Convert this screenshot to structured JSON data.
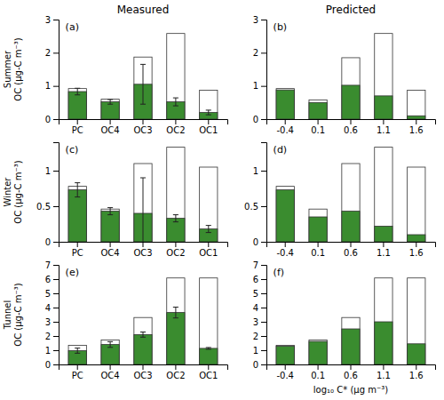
{
  "chart_data": [
    {
      "type": "bar",
      "title": "Measured",
      "ylabel": "Summer\nOC (μg-C m⁻³)",
      "annotations": [
        "(a)"
      ],
      "categories": [
        "PC",
        "OC4",
        "OC3",
        "OC2",
        "OC1"
      ],
      "series": [
        {
          "color": "#ffffff",
          "values": [
            0.92,
            0.6,
            1.87,
            2.58,
            0.87
          ]
        },
        {
          "color": "#3a8c2f",
          "values": [
            0.83,
            0.52,
            1.05,
            0.52,
            0.2
          ],
          "errors": [
            0.1,
            0.07,
            0.6,
            0.12,
            0.07
          ]
        }
      ],
      "stacked": false,
      "grid": false,
      "ylim": [
        0,
        3
      ],
      "yticks": [
        0,
        1,
        2,
        3
      ]
    },
    {
      "type": "bar",
      "title": "Predicted",
      "annotations": [
        "(b)"
      ],
      "categories": [
        "-0.4",
        "0.1",
        "0.6",
        "1.1",
        "1.6"
      ],
      "series": [
        {
          "color": "#ffffff",
          "values": [
            0.92,
            0.58,
            1.85,
            2.58,
            0.87
          ]
        },
        {
          "color": "#3a8c2f",
          "values": [
            0.88,
            0.5,
            1.02,
            0.7,
            0.1
          ]
        }
      ],
      "stacked": false,
      "grid": false,
      "ylim": [
        0,
        3
      ],
      "yticks": [
        0,
        1,
        2,
        3
      ]
    },
    {
      "type": "bar",
      "ylabel": "Winter\nOC (μg-C m⁻³)",
      "annotations": [
        "(c)"
      ],
      "categories": [
        "PC",
        "OC4",
        "OC3",
        "OC2",
        "OC1"
      ],
      "series": [
        {
          "color": "#ffffff",
          "values": [
            0.78,
            0.46,
            1.1,
            1.33,
            1.05
          ]
        },
        {
          "color": "#3a8c2f",
          "values": [
            0.73,
            0.43,
            0.4,
            0.33,
            0.18
          ],
          "errors": [
            0.1,
            0.05,
            0.5,
            0.05,
            0.05
          ]
        }
      ],
      "stacked": false,
      "grid": false,
      "ylim": [
        0,
        1.4
      ],
      "yticks": [
        0,
        0.5,
        1
      ]
    },
    {
      "type": "bar",
      "annotations": [
        "(d)"
      ],
      "categories": [
        "-0.4",
        "0.1",
        "0.6",
        "1.1",
        "1.6"
      ],
      "series": [
        {
          "color": "#ffffff",
          "values": [
            0.78,
            0.46,
            1.1,
            1.33,
            1.05
          ]
        },
        {
          "color": "#3a8c2f",
          "values": [
            0.73,
            0.35,
            0.43,
            0.22,
            0.1
          ]
        }
      ],
      "stacked": false,
      "grid": false,
      "ylim": [
        0,
        1.4
      ],
      "yticks": [
        0,
        0.5,
        1
      ]
    },
    {
      "type": "bar",
      "ylabel": "Tunnel\nOC (μg-C m⁻³)",
      "annotations": [
        "(e)"
      ],
      "categories": [
        "PC",
        "OC4",
        "OC3",
        "OC2",
        "OC1"
      ],
      "series": [
        {
          "color": "#ffffff",
          "values": [
            1.35,
            1.72,
            3.3,
            6.08,
            6.08
          ]
        },
        {
          "color": "#3a8c2f",
          "values": [
            0.97,
            1.4,
            2.1,
            3.65,
            1.13
          ],
          "errors": [
            0.18,
            0.2,
            0.18,
            0.38,
            0.06
          ]
        }
      ],
      "stacked": false,
      "grid": false,
      "ylim": [
        0,
        7
      ],
      "yticks": [
        0,
        1,
        2,
        3,
        4,
        5,
        6,
        7
      ]
    },
    {
      "type": "bar",
      "xlabel": "log₁₀ C* (μg m⁻³)",
      "annotations": [
        "(f)"
      ],
      "categories": [
        "-0.4",
        "0.1",
        "0.6",
        "1.1",
        "1.6"
      ],
      "series": [
        {
          "color": "#ffffff",
          "values": [
            1.35,
            1.72,
            3.3,
            6.08,
            6.08
          ]
        },
        {
          "color": "#3a8c2f",
          "values": [
            1.28,
            1.62,
            2.5,
            3.0,
            1.45
          ]
        }
      ],
      "stacked": false,
      "grid": false,
      "ylim": [
        0,
        7
      ],
      "yticks": [
        0,
        1,
        2,
        3,
        4,
        5,
        6,
        7
      ]
    }
  ]
}
